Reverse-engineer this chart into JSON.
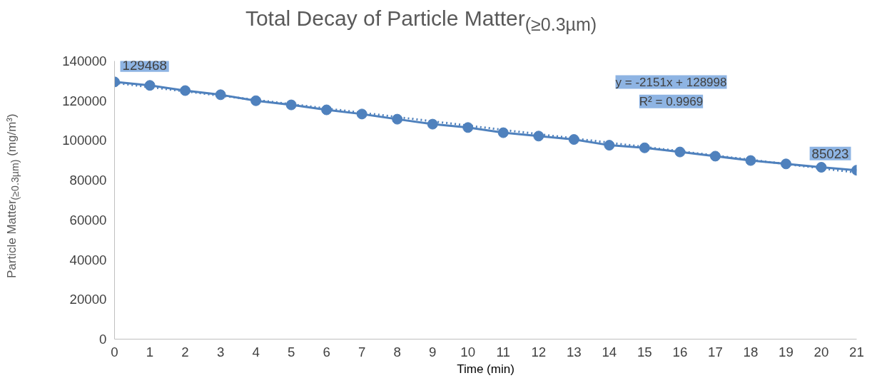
{
  "chart_data": {
    "type": "line",
    "title": "Total Decay of Particle Matter$_{(≥0.3µm)}$",
    "xlabel": "Time (min)",
    "ylabel": "Particle Matter$_{(≥0.3µm)}$ (mg/m³)",
    "x": [
      0,
      1,
      2,
      3,
      4,
      5,
      6,
      7,
      8,
      9,
      10,
      11,
      12,
      13,
      14,
      15,
      16,
      17,
      18,
      19,
      20,
      21
    ],
    "series": [
      {
        "color": "#4f81bd",
        "marker": "circle",
        "line_style": "solid",
        "values": [
          129468,
          127700,
          125100,
          123000,
          120000,
          117900,
          115400,
          113300,
          110700,
          108200,
          106500,
          103900,
          102200,
          100500,
          97600,
          96300,
          94200,
          92100,
          89900,
          88200,
          86500,
          85023
        ],
        "value_labels": [
          "129468",
          null,
          null,
          null,
          null,
          null,
          null,
          null,
          null,
          null,
          null,
          null,
          null,
          null,
          null,
          null,
          null,
          null,
          null,
          null,
          null,
          "85023"
        ]
      },
      {
        "type": "line",
        "color": "#4f81bd",
        "marker": "none",
        "line_style": "dotted",
        "x": [
          0,
          21
        ],
        "values": [
          128998,
          83827
        ]
      }
    ],
    "annotations": [
      "y = -2151x + 128998",
      "R² = 0.9969"
    ],
    "xlim": [
      0,
      21
    ],
    "ylim": [
      0,
      140000
    ],
    "xticks": [
      0,
      1,
      2,
      3,
      4,
      5,
      6,
      7,
      8,
      9,
      10,
      11,
      12,
      13,
      14,
      15,
      16,
      17,
      18,
      19,
      20,
      21
    ],
    "yticks": [
      0,
      20000,
      40000,
      60000,
      80000,
      100000,
      120000,
      140000
    ],
    "grid": false
  }
}
